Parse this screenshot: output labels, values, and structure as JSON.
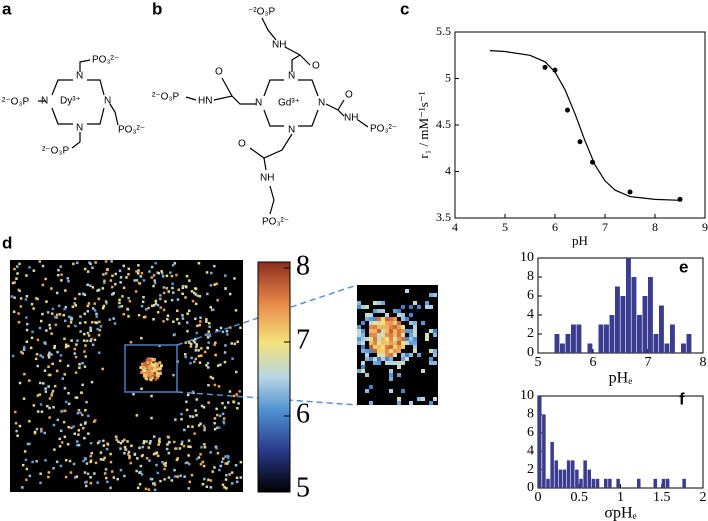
{
  "panel_labels": [
    "a",
    "b",
    "c",
    "d",
    "e",
    "f"
  ],
  "structure_a": {
    "labels": [
      "PO₃²⁻",
      "²⁻O₃P",
      "N",
      "N",
      "Dy³⁺",
      "N",
      "N",
      "PO₃²⁻",
      "²⁻O₃P"
    ]
  },
  "structure_b": {
    "labels": [
      "⁻²O₃P",
      "NH",
      "O",
      "N",
      "N",
      "Gd³⁺",
      "N",
      "N",
      "²⁻O₃P",
      "HN",
      "O",
      "O",
      "NH",
      "PO₃²⁻",
      "O",
      "NH",
      "PO₃²⁻"
    ]
  },
  "colorbar": {
    "lim": [
      5,
      8
    ],
    "ticks": [
      5,
      6,
      7,
      8
    ]
  },
  "chart_data": [
    {
      "type": "scatter",
      "xlabel": "pH",
      "ylabel": "r₁ / mM⁻¹s⁻¹",
      "xlim": [
        4,
        9
      ],
      "ylim": [
        3.5,
        5.5
      ],
      "xticks": [
        4,
        5,
        6,
        7,
        8,
        9
      ],
      "yticks": [
        3.5,
        4,
        4.5,
        5,
        5.5
      ],
      "color": "#000000",
      "series": [
        {
          "mode": "markers",
          "x": [
            5.8,
            6.0,
            6.25,
            6.5,
            6.75,
            7.5,
            8.5
          ],
          "values": [
            5.12,
            5.09,
            4.66,
            4.32,
            4.1,
            3.78,
            3.7
          ]
        },
        {
          "mode": "line",
          "x": [
            4.7,
            5.0,
            5.5,
            5.8,
            6.0,
            6.2,
            6.4,
            6.6,
            6.8,
            7.0,
            7.2,
            7.5,
            8.0,
            8.5
          ],
          "values": [
            5.3,
            5.29,
            5.25,
            5.18,
            5.07,
            4.88,
            4.62,
            4.33,
            4.07,
            3.9,
            3.8,
            3.73,
            3.7,
            3.69
          ]
        }
      ]
    },
    {
      "type": "histogram",
      "xlabel": "pHₑ",
      "xlim": [
        5,
        8
      ],
      "ylim": [
        0,
        10
      ],
      "xticks": [
        5,
        6,
        7,
        8
      ],
      "yticks": [
        0,
        2,
        4,
        6,
        8,
        10
      ],
      "color": "#3a3d8f",
      "bins": [
        5.2,
        5.3,
        5.4,
        5.5,
        5.6,
        5.7,
        5.8,
        5.9,
        6.0,
        6.1,
        6.2,
        6.3,
        6.4,
        6.5,
        6.6,
        6.7,
        6.8,
        6.9,
        7.0,
        7.1,
        7.2,
        7.3,
        7.4,
        7.5,
        7.6,
        7.7,
        7.8
      ],
      "values": [
        0,
        2,
        1,
        2,
        3,
        3,
        0,
        1,
        0,
        3,
        3,
        4,
        7,
        6,
        10,
        8,
        4,
        6,
        8,
        2,
        5,
        1,
        3,
        0,
        1,
        2
      ]
    },
    {
      "type": "histogram",
      "xlabel": "σpHₑ",
      "xlim": [
        0,
        2
      ],
      "ylim": [
        0,
        10
      ],
      "xticks": [
        0,
        0.5,
        1,
        1.5,
        2
      ],
      "yticks": [
        0,
        2,
        4,
        6,
        8,
        10
      ],
      "color": "#3a3d8f",
      "bins": [
        0,
        0.05,
        0.1,
        0.15,
        0.2,
        0.25,
        0.3,
        0.35,
        0.4,
        0.45,
        0.5,
        0.55,
        0.6,
        0.65,
        0.7,
        0.75,
        0.8,
        0.85,
        0.9,
        0.95,
        1.0,
        1.05,
        1.1,
        1.15,
        1.2,
        1.25,
        1.3,
        1.35,
        1.4,
        1.45,
        1.5,
        1.55,
        1.6,
        1.65,
        1.7,
        1.75,
        1.8
      ],
      "values": [
        10,
        8,
        1,
        5,
        3,
        2,
        2,
        3,
        3,
        2,
        1,
        3,
        2,
        1,
        1,
        0,
        1,
        1,
        0,
        1,
        0,
        0,
        0,
        0,
        1,
        0,
        0,
        0,
        1,
        0,
        1,
        1,
        0,
        0,
        0,
        1
      ]
    }
  ]
}
